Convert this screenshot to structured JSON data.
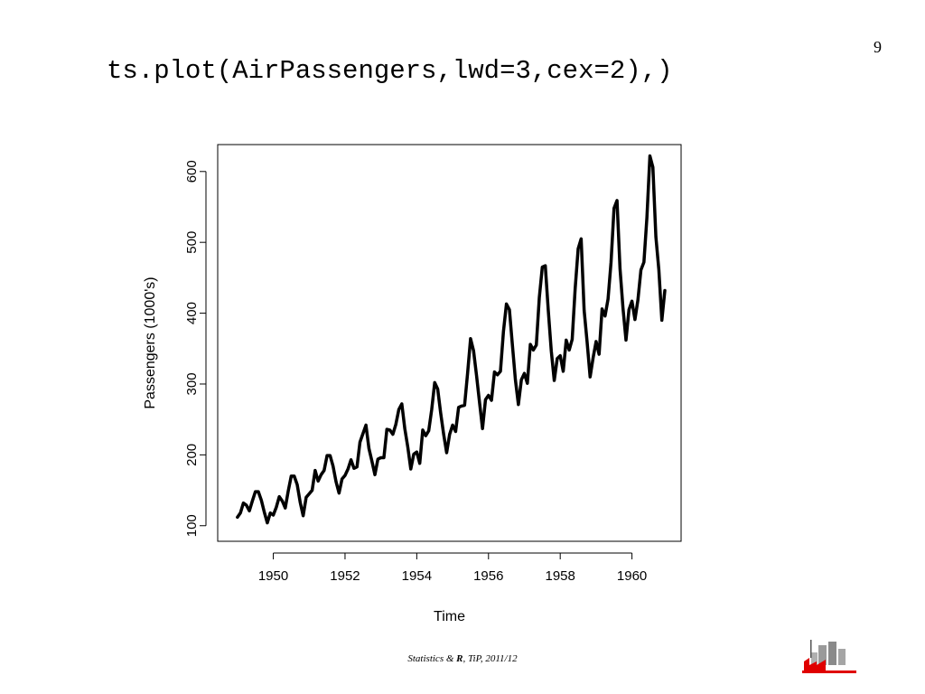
{
  "page_number": "9",
  "title": "ts.plot(AirPassengers,lwd=3,cex=2),)",
  "footer": {
    "prefix": "Statistics & ",
    "bold": "R",
    "suffix": ", TiP, 2011/12"
  },
  "logo": {
    "icon": "statistics-logo-icon",
    "accent_color": "#e00000"
  },
  "chart_data": {
    "type": "line",
    "xlabel": "Time",
    "ylabel": "Passengers (1000's)",
    "xlim": [
      1948.45,
      1961.37
    ],
    "ylim": [
      78,
      638
    ],
    "xticks": [
      1950,
      1952,
      1954,
      1956,
      1958,
      1960
    ],
    "yticks": [
      100,
      200,
      300,
      400,
      500,
      600
    ],
    "grid": false,
    "line_color": "#000000",
    "x_start": 1949,
    "x_step": 0.0833333,
    "series": [
      {
        "values": [
          112,
          118,
          132,
          129,
          121,
          135,
          148,
          148,
          136,
          119,
          104,
          118,
          115,
          126,
          141,
          135,
          125,
          149,
          170,
          170,
          158,
          133,
          114,
          140,
          145,
          150,
          178,
          163,
          172,
          178,
          199,
          199,
          184,
          162,
          146,
          166,
          171,
          180,
          193,
          181,
          183,
          218,
          230,
          242,
          209,
          191,
          172,
          194,
          196,
          196,
          236,
          235,
          229,
          243,
          264,
          272,
          237,
          211,
          180,
          201,
          204,
          188,
          235,
          227,
          234,
          264,
          302,
          293,
          259,
          229,
          203,
          229,
          242,
          233,
          267,
          269,
          270,
          315,
          364,
          347,
          312,
          274,
          237,
          278,
          284,
          277,
          317,
          313,
          318,
          374,
          413,
          405,
          355,
          306,
          271,
          306,
          315,
          301,
          356,
          348,
          355,
          422,
          465,
          467,
          404,
          347,
          305,
          336,
          340,
          318,
          362,
          348,
          363,
          435,
          491,
          505,
          404,
          359,
          310,
          337,
          360,
          342,
          406,
          396,
          420,
          472,
          548,
          559,
          463,
          407,
          362,
          405,
          417,
          391,
          419,
          461,
          472,
          535,
          622,
          606,
          508,
          461,
          390,
          432
        ]
      }
    ]
  }
}
